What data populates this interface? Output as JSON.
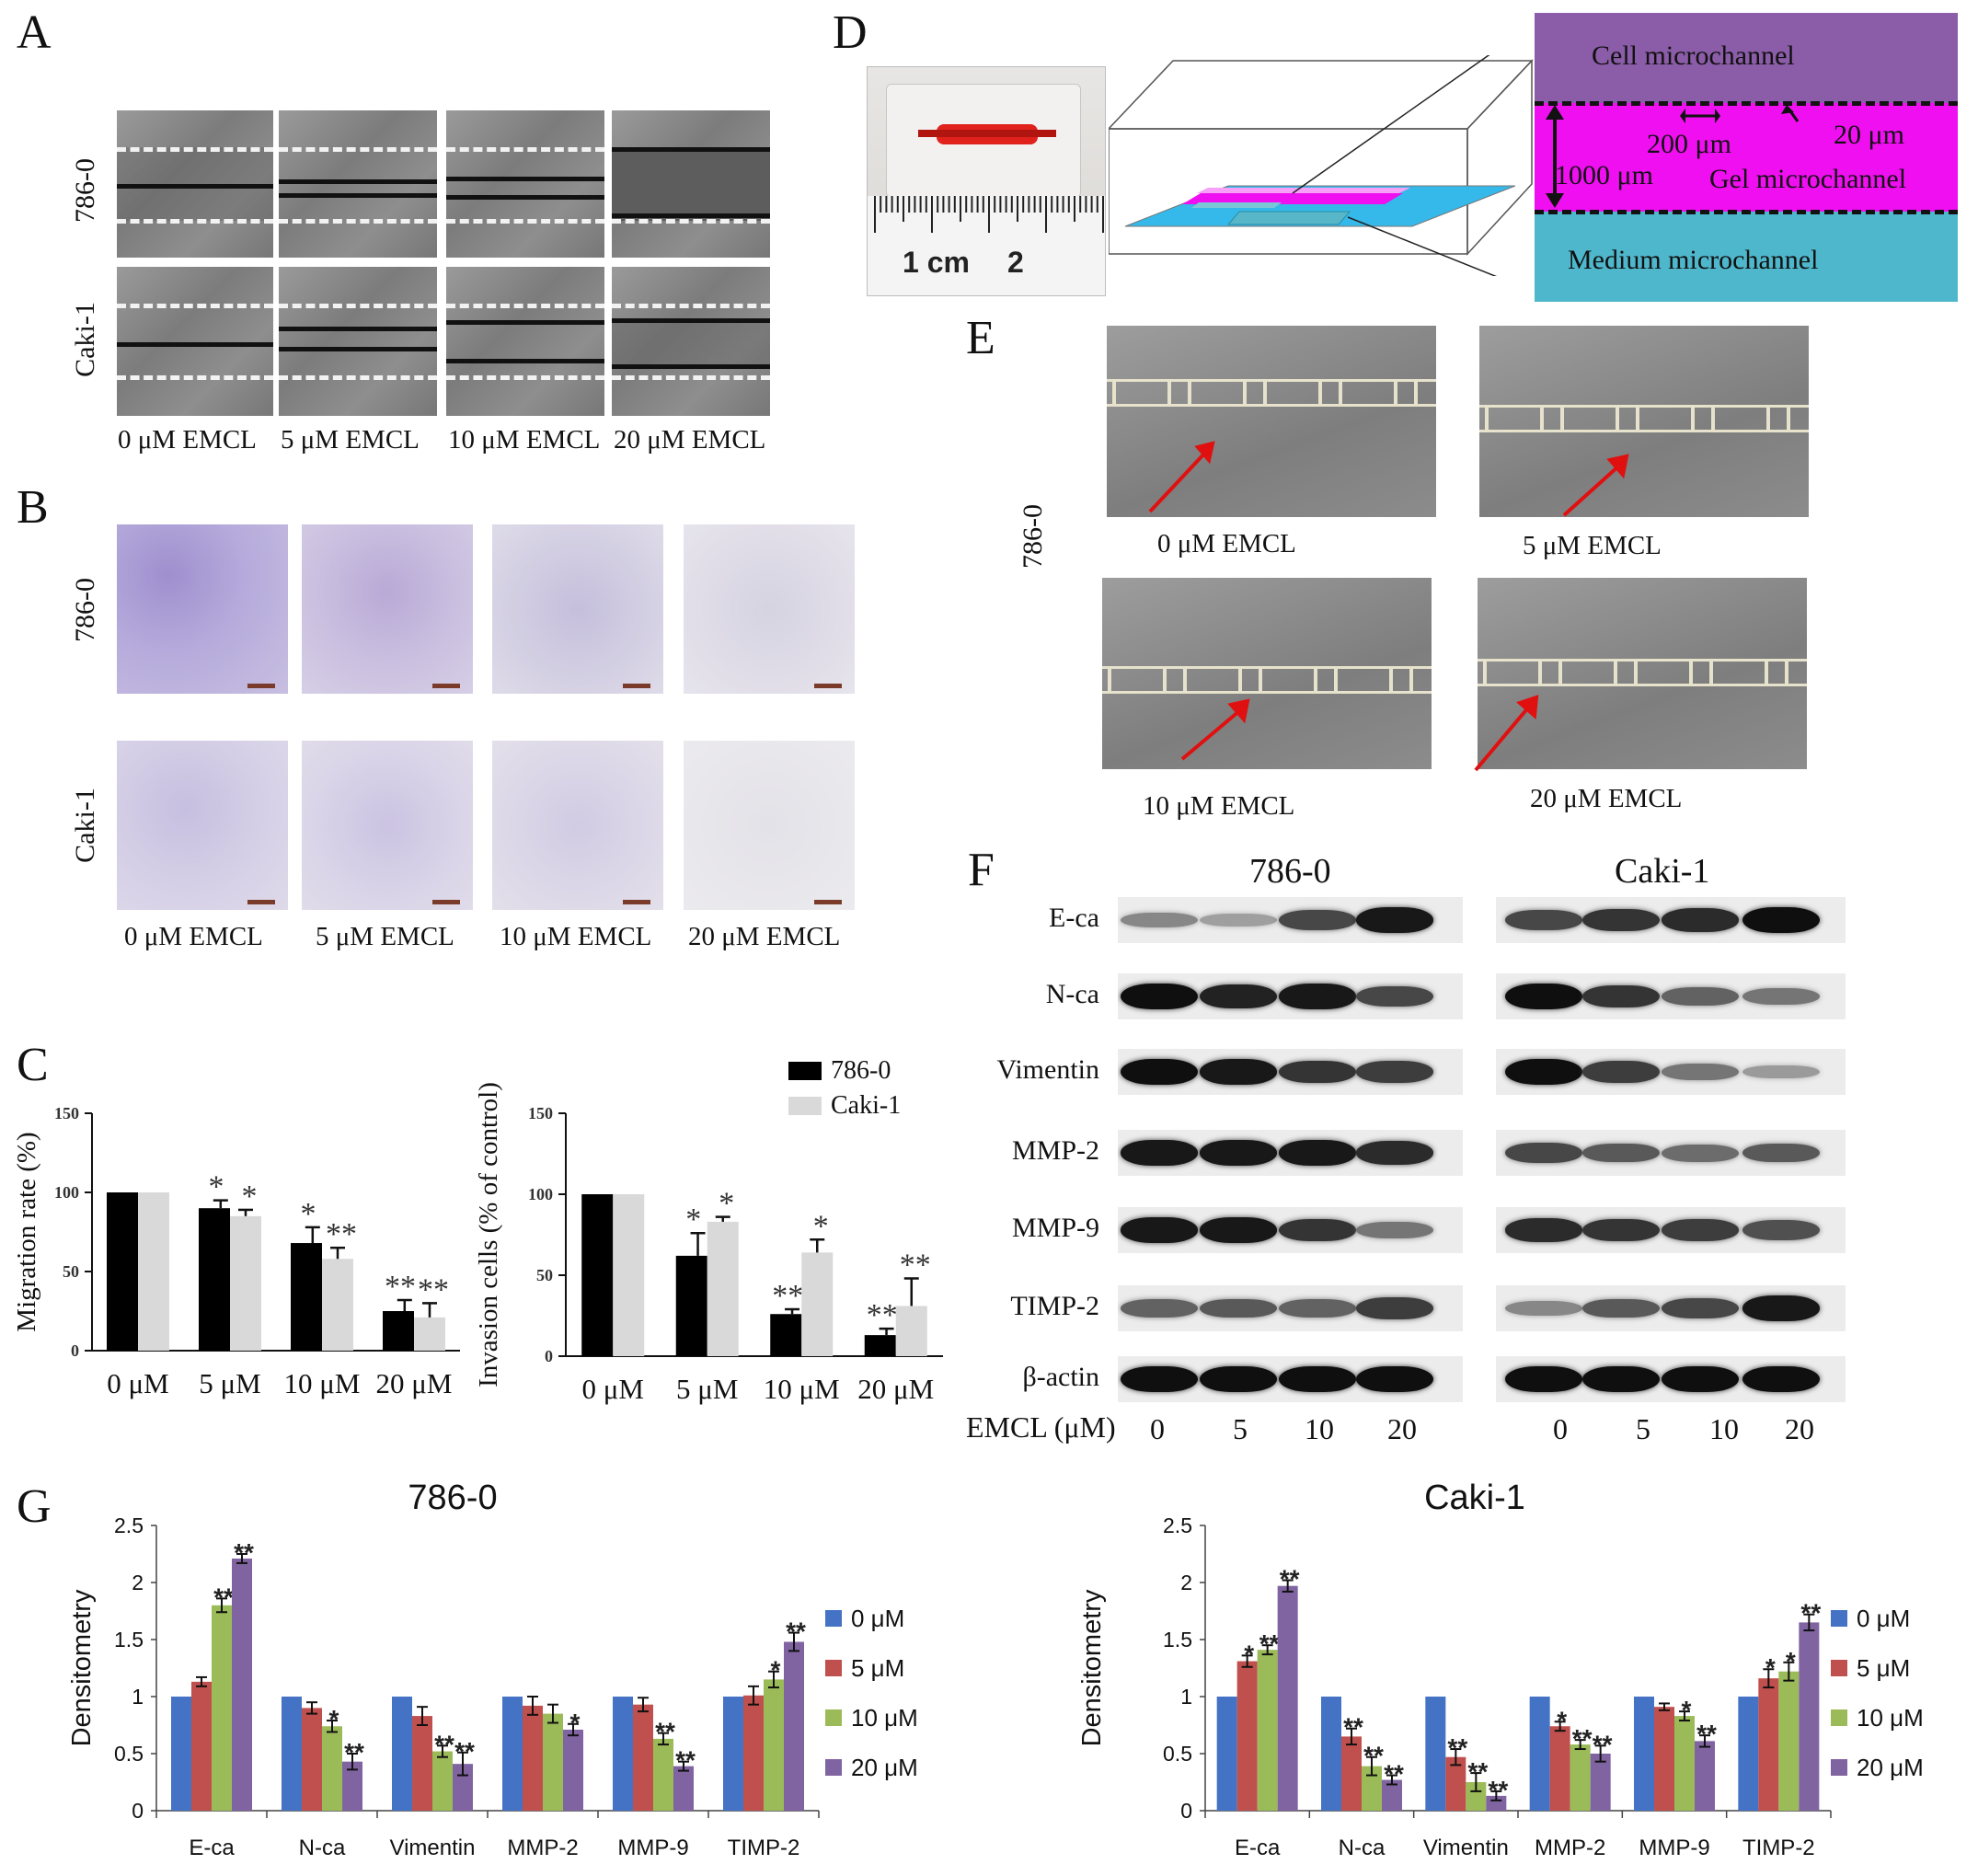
{
  "panel_letters": {
    "A": "A",
    "B": "B",
    "C": "C",
    "D": "D",
    "E": "E",
    "F": "F",
    "G": "G"
  },
  "panelA": {
    "row_labels": [
      "786-0",
      "Caki-1"
    ],
    "conditions": [
      "0 μM   EMCL",
      "5 μM   EMCL",
      "10 μM   EMCL",
      "20 μM   EMCL"
    ]
  },
  "panelB": {
    "row_labels": [
      "786-0",
      "Caki-1"
    ],
    "conditions": [
      "0 μM   EMCL",
      "5 μM   EMCL",
      "10 μM   EMCL",
      "20 μM   EMCL"
    ]
  },
  "panelD": {
    "ruler_1cm": "1 cm",
    "ruler_2": "2",
    "cell_channel": "Cell microchannel",
    "gel_channel": "Gel microchannel",
    "medium_channel": "Medium microchannel",
    "dim_200": "200 μm",
    "dim_20": "20 μm",
    "dim_1000": "1000 μm",
    "colors": {
      "cell": "#8b5ca8",
      "gel": "#ef0ff0",
      "medium": "#4fb7cc",
      "chip_base": "#35b8ea"
    }
  },
  "panelE": {
    "row_label": "786-0",
    "conditions": [
      "0 μM   EMCL",
      "5 μM   EMCL",
      "10 μM   EMCL",
      "20 μM   EMCL"
    ]
  },
  "panelF": {
    "groups": [
      "786-0",
      "Caki-1"
    ],
    "proteins": [
      "E-ca",
      "N-ca",
      "Vimentin",
      "MMP-2",
      "MMP-9",
      "TIMP-2",
      "β-actin"
    ],
    "xlabel": "EMCL (μM)",
    "doses": [
      "0",
      "5",
      "10",
      "20"
    ],
    "band_intensity": {
      "786-0": {
        "E-ca": [
          0.35,
          0.22,
          0.7,
          0.95
        ],
        "N-ca": [
          1,
          0.9,
          0.95,
          0.7
        ],
        "Vimentin": [
          1,
          0.95,
          0.8,
          0.75
        ],
        "MMP-2": [
          0.95,
          0.95,
          0.95,
          0.85
        ],
        "MMP-9": [
          0.95,
          0.95,
          0.8,
          0.45
        ],
        "TIMP-2": [
          0.55,
          0.6,
          0.55,
          0.75
        ],
        "β-actin": [
          1,
          1,
          1,
          1
        ]
      },
      "Caki-1": {
        "E-ca": [
          0.7,
          0.8,
          0.85,
          1
        ],
        "N-ca": [
          1,
          0.8,
          0.55,
          0.45
        ],
        "Vimentin": [
          1,
          0.75,
          0.45,
          0.25
        ],
        "MMP-2": [
          0.7,
          0.6,
          0.5,
          0.6
        ],
        "MMP-9": [
          0.85,
          0.8,
          0.75,
          0.65
        ],
        "TIMP-2": [
          0.35,
          0.6,
          0.7,
          0.95
        ],
        "β-actin": [
          1,
          1,
          1,
          1
        ]
      }
    }
  },
  "chart_data": [
    {
      "type": "bar",
      "panel": "C-left",
      "categories": [
        "0 μM",
        "5 μM",
        "10 μM",
        "20 μM"
      ],
      "series": [
        {
          "name": "786-0",
          "values": [
            100,
            90,
            68,
            25
          ],
          "errors": [
            0,
            5,
            10,
            7
          ],
          "sig": [
            "",
            "*",
            "*",
            "**"
          ],
          "color": "#000000"
        },
        {
          "name": "Caki-1",
          "values": [
            100,
            85,
            58,
            21
          ],
          "errors": [
            0,
            4,
            7,
            9
          ],
          "sig": [
            "",
            "*",
            "**",
            "**"
          ],
          "color": "#d9d9d9"
        }
      ],
      "ylabel": "Migration rate (%)",
      "ylim": [
        0,
        150
      ],
      "yticks": [
        "0",
        "50",
        "100",
        "150"
      ]
    },
    {
      "type": "bar",
      "panel": "C-right",
      "categories": [
        "0 μM",
        "5 μM",
        "10 μM",
        "20 μM"
      ],
      "series": [
        {
          "name": "786-0",
          "values": [
            100,
            62,
            26,
            13
          ],
          "errors": [
            0,
            14,
            3,
            4
          ],
          "sig": [
            "",
            "*",
            "**",
            "**"
          ],
          "color": "#000000"
        },
        {
          "name": "Caki-1",
          "values": [
            100,
            83,
            64,
            31
          ],
          "errors": [
            0,
            3,
            8,
            17
          ],
          "sig": [
            "",
            "*",
            "*",
            "**"
          ],
          "color": "#d9d9d9"
        }
      ],
      "ylabel": "Invasion cells (% of control)",
      "ylim": [
        0,
        150
      ],
      "yticks": [
        "0",
        "50",
        "100",
        "150"
      ],
      "legend": [
        "786-0",
        "Caki-1"
      ]
    },
    {
      "type": "bar",
      "panel": "G-786-0",
      "title": "786-0",
      "categories": [
        "E-ca",
        "N-ca",
        "Vimentin",
        "MMP-2",
        "MMP-9",
        "TIMP-2"
      ],
      "series": [
        {
          "name": "0 μM",
          "values": [
            1,
            1,
            1,
            1,
            1,
            1
          ],
          "errors": [
            0,
            0,
            0,
            0,
            0,
            0
          ],
          "sig": [
            "",
            "",
            "",
            "",
            "",
            ""
          ],
          "color": "#4472c4"
        },
        {
          "name": "5 μM",
          "values": [
            1.13,
            0.9,
            0.83,
            0.92,
            0.93,
            1.01
          ],
          "errors": [
            0.04,
            0.05,
            0.08,
            0.08,
            0.06,
            0.08
          ],
          "sig": [
            "",
            "",
            "",
            "",
            "",
            ""
          ],
          "color": "#c0504d"
        },
        {
          "name": "10 μM",
          "values": [
            1.8,
            0.74,
            0.52,
            0.85,
            0.63,
            1.15
          ],
          "errors": [
            0.06,
            0.05,
            0.05,
            0.08,
            0.05,
            0.07
          ],
          "sig": [
            "**",
            "*",
            "**",
            "",
            "**",
            "*"
          ],
          "color": "#9bbb59"
        },
        {
          "name": "20 μM",
          "values": [
            2.21,
            0.43,
            0.41,
            0.71,
            0.39,
            1.48
          ],
          "errors": [
            0.04,
            0.07,
            0.1,
            0.05,
            0.04,
            0.08
          ],
          "sig": [
            "**",
            "**",
            "**",
            "*",
            "**",
            "**"
          ],
          "color": "#8064a2"
        }
      ],
      "ylabel": "Densitometry",
      "ylim": [
        0,
        2.5
      ],
      "yticks": [
        "0",
        "0.5",
        "1",
        "1.5",
        "2",
        "2.5"
      ],
      "legend": [
        "0 μM",
        "5 μM",
        "10 μM",
        "20 μM"
      ]
    },
    {
      "type": "bar",
      "panel": "G-Caki-1",
      "title": "Caki-1",
      "categories": [
        "E-ca",
        "N-ca",
        "Vimentin",
        "MMP-2",
        "MMP-9",
        "TIMP-2"
      ],
      "series": [
        {
          "name": "0 μM",
          "values": [
            1,
            1,
            1,
            1,
            1,
            1
          ],
          "errors": [
            0,
            0,
            0,
            0,
            0,
            0
          ],
          "sig": [
            "",
            "",
            "",
            "",
            "",
            ""
          ],
          "color": "#4472c4"
        },
        {
          "name": "5 μM",
          "values": [
            1.31,
            0.65,
            0.47,
            0.74,
            0.91,
            1.16
          ],
          "errors": [
            0.05,
            0.07,
            0.07,
            0.04,
            0.03,
            0.08
          ],
          "sig": [
            "*",
            "**",
            "**",
            "*",
            "",
            "*"
          ],
          "color": "#c0504d"
        },
        {
          "name": "10 μM",
          "values": [
            1.41,
            0.39,
            0.25,
            0.58,
            0.83,
            1.22
          ],
          "errors": [
            0.04,
            0.08,
            0.08,
            0.04,
            0.04,
            0.08
          ],
          "sig": [
            "**",
            "**",
            "**",
            "**",
            "*",
            "*"
          ],
          "color": "#9bbb59"
        },
        {
          "name": "20 μM",
          "values": [
            1.97,
            0.27,
            0.13,
            0.5,
            0.61,
            1.65
          ],
          "errors": [
            0.05,
            0.04,
            0.04,
            0.07,
            0.05,
            0.07
          ],
          "sig": [
            "**",
            "**",
            "**",
            "**",
            "**",
            "**"
          ],
          "color": "#8064a2"
        }
      ],
      "ylabel": "Densitometry",
      "ylim": [
        0,
        2.5
      ],
      "yticks": [
        "0",
        "0.5",
        "1",
        "1.5",
        "2",
        "2.5"
      ],
      "legend": [
        "0 μM",
        "5 μM",
        "10 μM",
        "20 μM"
      ]
    }
  ]
}
